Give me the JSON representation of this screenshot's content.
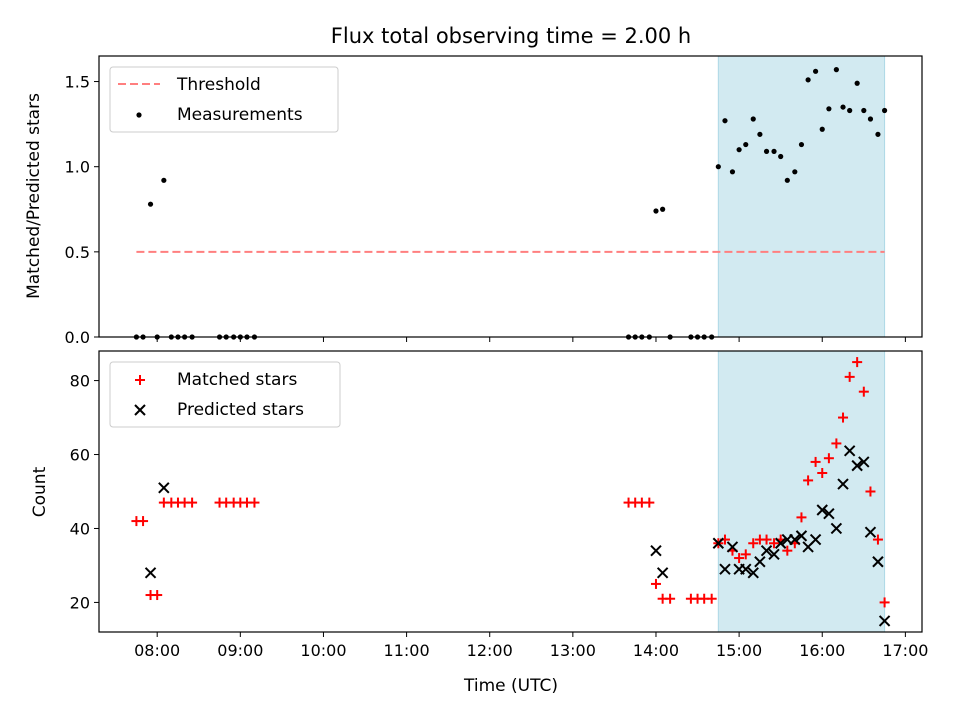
{
  "chart_data": {
    "type": "scatter",
    "title": "Flux total observing time = 2.00 h",
    "xlabel": "Time (UTC)",
    "xlim": [
      7.3,
      17.2
    ],
    "xticks": [
      8,
      9,
      10,
      11,
      12,
      13,
      14,
      15,
      16,
      17
    ],
    "xtick_labels": [
      "08:00",
      "09:00",
      "10:00",
      "11:00",
      "12:00",
      "13:00",
      "14:00",
      "15:00",
      "16:00",
      "17:00"
    ],
    "highlight_span": [
      14.75,
      16.75
    ],
    "highlight_color": "#add8e6",
    "top": {
      "ylabel": "Matched/Predicted stars",
      "ylim": [
        0,
        1.65
      ],
      "yticks": [
        0.0,
        0.5,
        1.0,
        1.5
      ],
      "ytick_labels": [
        "0.0",
        "0.5",
        "1.0",
        "1.5"
      ],
      "threshold": {
        "label": "Threshold",
        "value": 0.5,
        "x_range": [
          7.75,
          16.75
        ],
        "color": "#ff7f7f"
      },
      "measurements": {
        "label": "Measurements",
        "color": "#000000",
        "points": [
          [
            7.75,
            0
          ],
          [
            7.83,
            0
          ],
          [
            7.92,
            0.78
          ],
          [
            8.0,
            0
          ],
          [
            8.08,
            0.92
          ],
          [
            8.17,
            0
          ],
          [
            8.25,
            0
          ],
          [
            8.33,
            0
          ],
          [
            8.42,
            0
          ],
          [
            8.75,
            0
          ],
          [
            8.83,
            0
          ],
          [
            8.92,
            0
          ],
          [
            9.0,
            0
          ],
          [
            9.08,
            0
          ],
          [
            9.17,
            0
          ],
          [
            13.67,
            0
          ],
          [
            13.75,
            0
          ],
          [
            13.83,
            0
          ],
          [
            13.92,
            0
          ],
          [
            14.0,
            0.74
          ],
          [
            14.08,
            0.75
          ],
          [
            14.17,
            0
          ],
          [
            14.42,
            0
          ],
          [
            14.5,
            0
          ],
          [
            14.58,
            0
          ],
          [
            14.67,
            0
          ],
          [
            14.75,
            1.0
          ],
          [
            14.83,
            1.27
          ],
          [
            14.92,
            0.97
          ],
          [
            15.0,
            1.1
          ],
          [
            15.08,
            1.13
          ],
          [
            15.17,
            1.28
          ],
          [
            15.25,
            1.19
          ],
          [
            15.33,
            1.09
          ],
          [
            15.42,
            1.09
          ],
          [
            15.5,
            1.06
          ],
          [
            15.58,
            0.92
          ],
          [
            15.67,
            0.97
          ],
          [
            15.75,
            1.13
          ],
          [
            15.83,
            1.51
          ],
          [
            15.92,
            1.56
          ],
          [
            16.0,
            1.22
          ],
          [
            16.08,
            1.34
          ],
          [
            16.17,
            1.57
          ],
          [
            16.25,
            1.35
          ],
          [
            16.33,
            1.33
          ],
          [
            16.42,
            1.49
          ],
          [
            16.5,
            1.33
          ],
          [
            16.58,
            1.28
          ],
          [
            16.67,
            1.19
          ],
          [
            16.75,
            1.33
          ]
        ]
      }
    },
    "bottom": {
      "ylabel": "Count",
      "ylim": [
        12,
        88
      ],
      "yticks": [
        20,
        40,
        60,
        80
      ],
      "ytick_labels": [
        "20",
        "40",
        "60",
        "80"
      ],
      "matched": {
        "label": "Matched stars",
        "color": "#ff0000",
        "marker": "+",
        "points": [
          [
            7.75,
            42
          ],
          [
            7.83,
            42
          ],
          [
            7.92,
            22
          ],
          [
            8.0,
            22
          ],
          [
            8.08,
            47
          ],
          [
            8.17,
            47
          ],
          [
            8.25,
            47
          ],
          [
            8.33,
            47
          ],
          [
            8.42,
            47
          ],
          [
            8.75,
            47
          ],
          [
            8.83,
            47
          ],
          [
            8.92,
            47
          ],
          [
            9.0,
            47
          ],
          [
            9.08,
            47
          ],
          [
            9.17,
            47
          ],
          [
            13.67,
            47
          ],
          [
            13.75,
            47
          ],
          [
            13.83,
            47
          ],
          [
            13.92,
            47
          ],
          [
            14.0,
            25
          ],
          [
            14.08,
            21
          ],
          [
            14.17,
            21
          ],
          [
            14.42,
            21
          ],
          [
            14.5,
            21
          ],
          [
            14.58,
            21
          ],
          [
            14.67,
            21
          ],
          [
            14.75,
            36
          ],
          [
            14.83,
            37
          ],
          [
            14.92,
            34
          ],
          [
            15.0,
            32
          ],
          [
            15.08,
            33
          ],
          [
            15.17,
            36
          ],
          [
            15.25,
            37
          ],
          [
            15.33,
            37
          ],
          [
            15.42,
            36
          ],
          [
            15.5,
            37
          ],
          [
            15.58,
            34
          ],
          [
            15.67,
            36
          ],
          [
            15.75,
            43
          ],
          [
            15.83,
            53
          ],
          [
            15.92,
            58
          ],
          [
            16.0,
            55
          ],
          [
            16.08,
            59
          ],
          [
            16.17,
            63
          ],
          [
            16.25,
            70
          ],
          [
            16.33,
            81
          ],
          [
            16.42,
            85
          ],
          [
            16.5,
            77
          ],
          [
            16.58,
            50
          ],
          [
            16.67,
            37
          ],
          [
            16.75,
            20
          ]
        ]
      },
      "predicted": {
        "label": "Predicted stars",
        "color": "#000000",
        "marker": "x",
        "points": [
          [
            7.92,
            28
          ],
          [
            8.08,
            51
          ],
          [
            14.0,
            34
          ],
          [
            14.08,
            28
          ],
          [
            14.75,
            36
          ],
          [
            14.83,
            29
          ],
          [
            14.92,
            35
          ],
          [
            15.0,
            29
          ],
          [
            15.08,
            29
          ],
          [
            15.17,
            28
          ],
          [
            15.25,
            31
          ],
          [
            15.33,
            34
          ],
          [
            15.42,
            33
          ],
          [
            15.5,
            36
          ],
          [
            15.58,
            37
          ],
          [
            15.67,
            37
          ],
          [
            15.75,
            38
          ],
          [
            15.83,
            35
          ],
          [
            15.92,
            37
          ],
          [
            16.0,
            45
          ],
          [
            16.08,
            44
          ],
          [
            16.17,
            40
          ],
          [
            16.25,
            52
          ],
          [
            16.33,
            61
          ],
          [
            16.42,
            57
          ],
          [
            16.5,
            58
          ],
          [
            16.58,
            39
          ],
          [
            16.67,
            31
          ],
          [
            16.75,
            15
          ]
        ]
      }
    }
  }
}
